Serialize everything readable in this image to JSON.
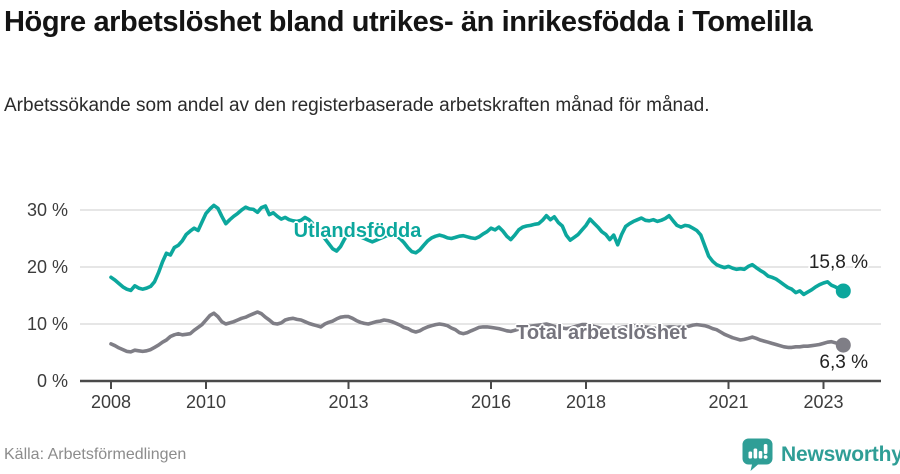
{
  "header": {
    "title": "Högre arbetslöshet bland utrikes- än inrikesfödda i Tomelilla",
    "subtitle": "Arbetssökande som andel av den registerbaserade arbetskraften månad för månad."
  },
  "footer": {
    "source": "Källa: Arbetsförmedlingen",
    "brand": "Newsworthy",
    "brand_icon": "bar-chart-speech-bubble",
    "brand_color": "#2f9e96"
  },
  "colors": {
    "accent_teal": "#0ca79d",
    "neutral_gray": "#7f7e86",
    "gridline": "#d8d8d8",
    "axis": "#4a4a4a",
    "tick_text": "#3c3c3c",
    "annotation_text": "#222222"
  },
  "chart_data": {
    "type": "line",
    "title": "Högre arbetslöshet bland utrikes- än inrikesfödda i Tomelilla",
    "subtitle": "Arbetssökande som andel av den registerbaserade arbetskraften månad för månad.",
    "xlabel": "",
    "ylabel": "",
    "unit": "%",
    "frequency": "monthly",
    "x_start": "2008-01",
    "x_end": "2023-06",
    "xlim_years": [
      2007.4,
      2024.2
    ],
    "ylim": [
      0,
      32
    ],
    "grid": true,
    "legend_position": "inline-labels",
    "y_ticks": [
      {
        "value": 0,
        "label": "0 %"
      },
      {
        "value": 10,
        "label": "10 %"
      },
      {
        "value": 20,
        "label": "20 %"
      },
      {
        "value": 30,
        "label": "30 %"
      }
    ],
    "x_ticks": [
      {
        "year": 2008,
        "label": "2008"
      },
      {
        "year": 2010,
        "label": "2010"
      },
      {
        "year": 2013,
        "label": "2013"
      },
      {
        "year": 2016,
        "label": "2016"
      },
      {
        "year": 2018,
        "label": "2018"
      },
      {
        "year": 2021,
        "label": "2021"
      },
      {
        "year": 2023,
        "label": "2023"
      }
    ],
    "series": [
      {
        "name": "Utlandsfödda",
        "color": "#0ca79d",
        "end_label": "15,8 %",
        "end_value": 15.8,
        "values": [
          18.2,
          17.7,
          17.1,
          16.5,
          16.1,
          15.9,
          16.7,
          16.3,
          16.1,
          16.3,
          16.6,
          17.4,
          19.0,
          20.9,
          22.4,
          22.1,
          23.4,
          23.8,
          24.6,
          25.7,
          26.3,
          26.8,
          26.4,
          27.9,
          29.4,
          30.2,
          30.8,
          30.3,
          28.9,
          27.6,
          28.3,
          28.9,
          29.4,
          30.0,
          30.5,
          30.2,
          30.1,
          29.6,
          30.4,
          30.7,
          29.2,
          29.5,
          28.9,
          28.4,
          28.7,
          28.3,
          28.1,
          28.0,
          28.2,
          28.7,
          28.3,
          27.6,
          26.8,
          25.9,
          25.0,
          24.1,
          23.2,
          22.8,
          23.6,
          24.9,
          25.8,
          26.1,
          25.7,
          25.3,
          25.0,
          24.7,
          24.4,
          24.7,
          25.0,
          25.3,
          25.6,
          25.9,
          25.5,
          25.0,
          24.3,
          23.4,
          22.7,
          22.5,
          23.0,
          23.8,
          24.6,
          25.1,
          25.4,
          25.6,
          25.4,
          25.1,
          25.0,
          25.2,
          25.4,
          25.5,
          25.3,
          25.1,
          25.0,
          25.3,
          25.8,
          26.2,
          26.8,
          26.5,
          27.0,
          26.3,
          25.4,
          24.8,
          25.6,
          26.5,
          27.0,
          27.2,
          27.3,
          27.5,
          27.6,
          28.2,
          29.0,
          28.3,
          28.8,
          27.8,
          27.2,
          25.6,
          24.7,
          25.2,
          25.7,
          26.5,
          27.3,
          28.4,
          27.7,
          27.0,
          26.2,
          25.7,
          24.8,
          25.6,
          23.9,
          25.7,
          27.1,
          27.6,
          28.0,
          28.3,
          28.6,
          28.2,
          28.1,
          28.3,
          28.0,
          28.2,
          28.5,
          29.0,
          28.1,
          27.3,
          27.0,
          27.3,
          27.2,
          26.8,
          26.4,
          25.6,
          23.7,
          21.9,
          21.0,
          20.4,
          20.1,
          19.9,
          20.1,
          19.8,
          19.6,
          19.7,
          19.6,
          20.1,
          20.4,
          19.9,
          19.4,
          19.0,
          18.4,
          18.2,
          17.9,
          17.4,
          16.9,
          16.4,
          16.1,
          15.5,
          15.8,
          15.2,
          15.6,
          16.0,
          16.5,
          16.9,
          17.2,
          17.4,
          16.8,
          16.5,
          16.1,
          15.8
        ]
      },
      {
        "name": "Total arbetslöshet",
        "color": "#7f7e86",
        "end_label": "6,3 %",
        "end_value": 6.3,
        "values": [
          6.5,
          6.2,
          5.8,
          5.5,
          5.2,
          5.1,
          5.4,
          5.3,
          5.2,
          5.3,
          5.5,
          5.9,
          6.3,
          6.8,
          7.2,
          7.8,
          8.1,
          8.3,
          8.1,
          8.2,
          8.3,
          8.9,
          9.4,
          9.9,
          10.7,
          11.5,
          11.9,
          11.3,
          10.4,
          10.0,
          10.2,
          10.4,
          10.7,
          11.0,
          11.2,
          11.5,
          11.8,
          12.1,
          11.8,
          11.2,
          10.7,
          10.1,
          10.0,
          10.2,
          10.7,
          10.9,
          11.0,
          10.8,
          10.7,
          10.4,
          10.1,
          9.9,
          9.7,
          9.5,
          10.0,
          10.3,
          10.5,
          10.9,
          11.2,
          11.3,
          11.3,
          11.0,
          10.6,
          10.3,
          10.1,
          10.0,
          10.2,
          10.4,
          10.5,
          10.7,
          10.6,
          10.4,
          10.1,
          9.8,
          9.4,
          9.2,
          8.8,
          8.6,
          8.8,
          9.2,
          9.5,
          9.7,
          9.9,
          10.0,
          9.9,
          9.7,
          9.3,
          9.0,
          8.5,
          8.3,
          8.5,
          8.8,
          9.1,
          9.4,
          9.5,
          9.5,
          9.4,
          9.3,
          9.2,
          9.0,
          8.8,
          8.7,
          8.9,
          9.1,
          9.3,
          9.5,
          9.6,
          9.7,
          9.8,
          9.9,
          10.0,
          9.8,
          9.6,
          9.4,
          9.3,
          9.2,
          9.3,
          9.5,
          9.7,
          9.9,
          9.9,
          9.8,
          9.6,
          9.4,
          9.2,
          9.0,
          8.9,
          9.0,
          9.2,
          9.4,
          9.5,
          9.6,
          9.7,
          9.7,
          9.6,
          9.5,
          9.4,
          9.3,
          9.2,
          9.3,
          9.4,
          9.5,
          9.5,
          9.4,
          9.5,
          9.4,
          9.6,
          9.8,
          9.9,
          9.8,
          9.7,
          9.5,
          9.2,
          9.0,
          8.6,
          8.2,
          7.9,
          7.6,
          7.4,
          7.2,
          7.3,
          7.5,
          7.7,
          7.5,
          7.2,
          7.0,
          6.8,
          6.6,
          6.4,
          6.2,
          6.0,
          5.9,
          5.9,
          6.0,
          6.0,
          6.1,
          6.1,
          6.2,
          6.3,
          6.4,
          6.6,
          6.8,
          6.9,
          6.7,
          6.5,
          6.3
        ]
      }
    ]
  }
}
